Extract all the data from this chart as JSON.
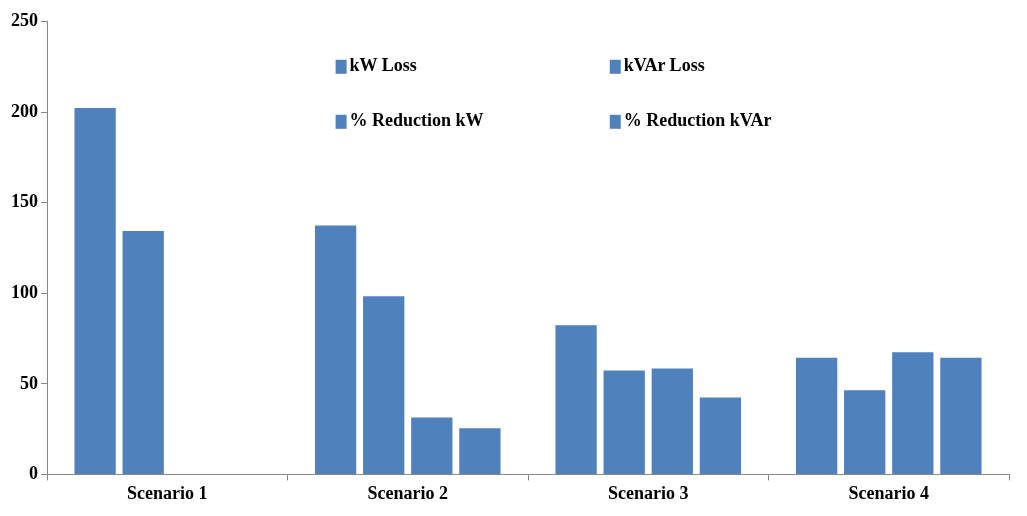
{
  "chart_data": {
    "type": "bar",
    "categories": [
      "Scenario 1",
      "Scenario 2",
      "Scenario 3",
      "Scenario 4"
    ],
    "series": [
      {
        "name": "kW Loss",
        "color": "#4f81bd",
        "values": [
          203,
          138,
          83,
          65
        ]
      },
      {
        "name": "kVAr Loss",
        "color": "#4f81bd",
        "values": [
          135,
          99,
          58,
          47
        ]
      },
      {
        "name": "% Reduction kW",
        "color": "#4f81bd",
        "values": [
          null,
          32,
          59,
          68
        ]
      },
      {
        "name": "% Reduction kVAr",
        "color": "#4f81bd",
        "values": [
          null,
          26,
          43,
          65
        ]
      }
    ],
    "ylim": [
      0,
      250
    ],
    "yticks": [
      0,
      50,
      100,
      150,
      200,
      250
    ],
    "grid": false,
    "legend": "top"
  }
}
